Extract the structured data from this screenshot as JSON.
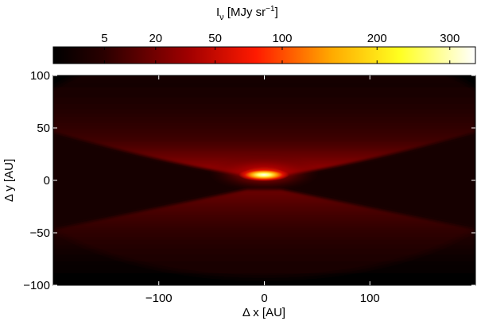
{
  "chart_data": {
    "type": "heatmap",
    "title": "",
    "colorbar": {
      "label_main": "I",
      "label_sub": "ν",
      "label_unit": " [MJy sr",
      "label_exp": "−1",
      "label_close": "]",
      "scale": "sqrt",
      "range": [
        0,
        340
      ],
      "ticks": [
        5,
        20,
        50,
        100,
        200,
        300
      ],
      "tick_labels": [
        "5",
        "20",
        "50",
        "100",
        "200",
        "300"
      ],
      "placement": "top"
    },
    "xlabel": "Δ x [AU]",
    "ylabel": "Δ y [AU]",
    "xlim": [
      -200,
      200
    ],
    "ylim": [
      -100,
      100
    ],
    "x_ticks": [
      -100,
      0,
      100
    ],
    "x_tick_labels": [
      "−100",
      "0",
      "100"
    ],
    "y_ticks": [
      100,
      50,
      0,
      -50,
      -100
    ],
    "y_tick_labels": [
      "100",
      "50",
      "0",
      "−50",
      "−100"
    ],
    "colormap": "hot",
    "features": [
      {
        "name": "central-source",
        "x": 0,
        "y": 3,
        "peak": 340
      },
      {
        "name": "upper-scattered-surface",
        "x": 0,
        "y": 15,
        "opening_slope": 0.3
      },
      {
        "name": "lower-scattered-surface",
        "x": 0,
        "y": -10,
        "opening_slope": 0.22
      },
      {
        "name": "dark-midplane-lane",
        "x": 0,
        "y": 0
      }
    ]
  }
}
